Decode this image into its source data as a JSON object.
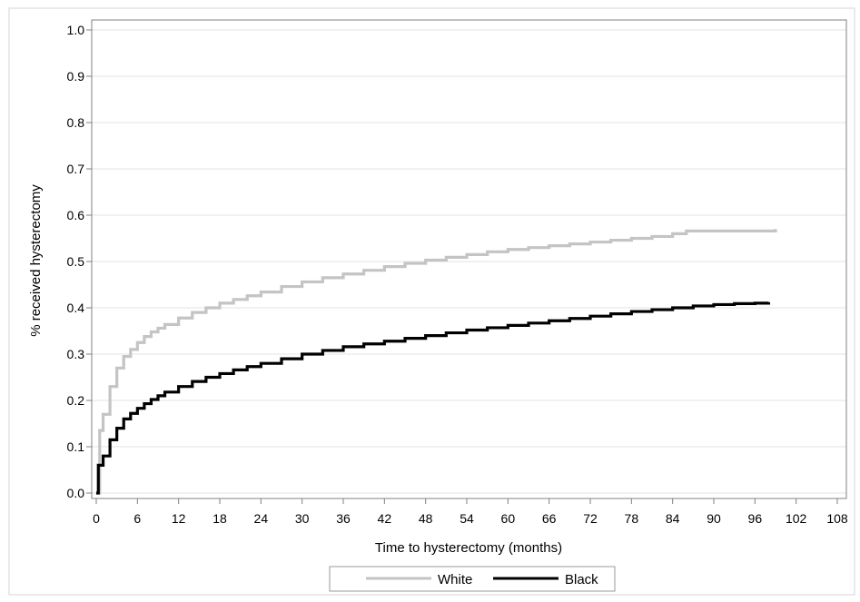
{
  "chart_data": {
    "type": "line",
    "step": true,
    "title": "",
    "xlabel": "Time to hysterectomy (months)",
    "ylabel": "% received hysterectomy",
    "xlim": [
      0,
      108
    ],
    "ylim": [
      0,
      1.0
    ],
    "xticks": [
      0,
      6,
      12,
      18,
      24,
      30,
      36,
      42,
      48,
      54,
      60,
      66,
      72,
      78,
      84,
      90,
      96,
      102,
      108
    ],
    "yticks": [
      "0.0",
      "0.1",
      "0.2",
      "0.3",
      "0.4",
      "0.5",
      "0.6",
      "0.7",
      "0.8",
      "0.9",
      "1.0"
    ],
    "grid": "horizontal",
    "legend_position": "bottom",
    "series": [
      {
        "name": "White",
        "color": "#c4c4c4",
        "x": [
          0,
          0.5,
          1,
          2,
          3,
          4,
          5,
          6,
          7,
          8,
          9,
          10,
          12,
          14,
          16,
          18,
          20,
          22,
          24,
          27,
          30,
          33,
          36,
          39,
          42,
          45,
          48,
          51,
          54,
          57,
          60,
          63,
          66,
          69,
          72,
          75,
          78,
          81,
          84,
          86,
          90,
          96,
          99
        ],
        "y": [
          0.0,
          0.135,
          0.17,
          0.23,
          0.27,
          0.295,
          0.31,
          0.325,
          0.338,
          0.348,
          0.356,
          0.364,
          0.378,
          0.39,
          0.4,
          0.41,
          0.418,
          0.426,
          0.434,
          0.446,
          0.456,
          0.465,
          0.473,
          0.481,
          0.489,
          0.496,
          0.503,
          0.509,
          0.515,
          0.521,
          0.526,
          0.53,
          0.534,
          0.538,
          0.542,
          0.546,
          0.55,
          0.554,
          0.56,
          0.566,
          0.566,
          0.566,
          0.57
        ]
      },
      {
        "name": "Black",
        "color": "#000000",
        "x": [
          0,
          0.3,
          1,
          2,
          3,
          4,
          5,
          6,
          7,
          8,
          9,
          10,
          12,
          14,
          16,
          18,
          20,
          22,
          24,
          27,
          30,
          33,
          36,
          39,
          42,
          45,
          48,
          51,
          54,
          57,
          60,
          63,
          66,
          69,
          72,
          75,
          78,
          81,
          84,
          87,
          90,
          93,
          96,
          98
        ],
        "y": [
          0.0,
          0.06,
          0.08,
          0.115,
          0.14,
          0.16,
          0.172,
          0.183,
          0.193,
          0.202,
          0.21,
          0.218,
          0.23,
          0.241,
          0.25,
          0.258,
          0.266,
          0.273,
          0.28,
          0.29,
          0.3,
          0.308,
          0.316,
          0.322,
          0.328,
          0.334,
          0.34,
          0.346,
          0.352,
          0.357,
          0.362,
          0.367,
          0.372,
          0.377,
          0.382,
          0.387,
          0.392,
          0.396,
          0.4,
          0.404,
          0.407,
          0.409,
          0.41,
          0.412
        ]
      }
    ]
  }
}
